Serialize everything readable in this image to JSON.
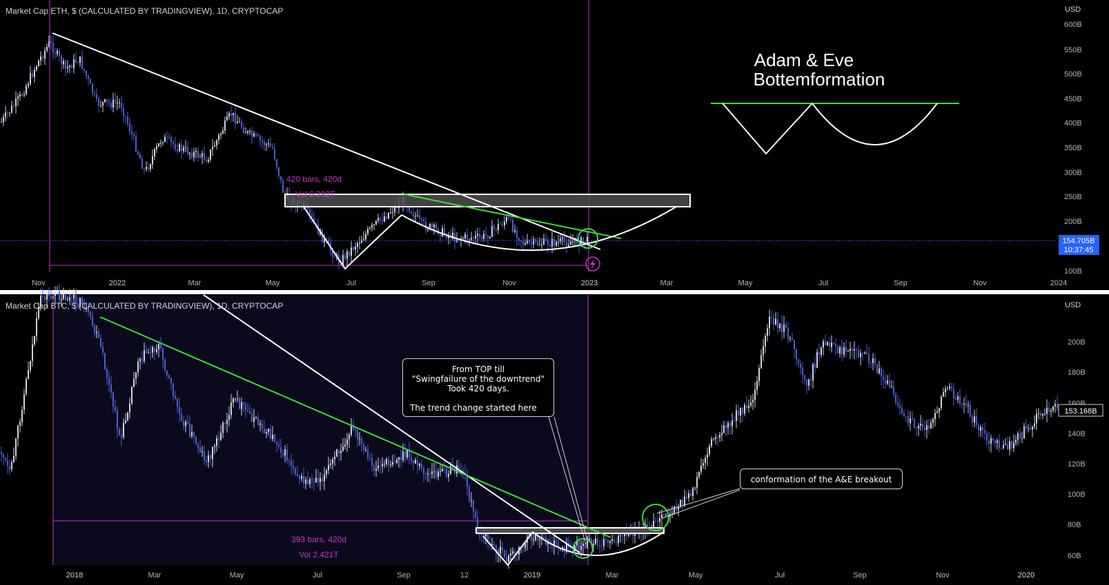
{
  "colors": {
    "background": "#000000",
    "candle": "#4a5fd0",
    "candle_light": "#d1d4dc",
    "trend_white": "#ffffff",
    "trend_green": "#3ddc3d",
    "measure": "#cc33cc",
    "price_tag": "#2962ff",
    "axis_text": "#b2b5be"
  },
  "eth_panel": {
    "title": "Market Cap ETH, $ (CALCULATED BY TRADINGVIEW), 1D, CRYPTOCAP",
    "currency": "USD",
    "y_ticks": [
      "600B",
      "550B",
      "500B",
      "450B",
      "400B",
      "350B",
      "300B",
      "250B",
      "200B",
      "100B"
    ],
    "x_ticks": [
      "Nov",
      "2022",
      "Mar",
      "May",
      "Jul",
      "Sep",
      "Nov",
      "2023",
      "Mar",
      "May",
      "Jul",
      "Sep",
      "Nov",
      "2024"
    ],
    "price_tag": "154.705B",
    "countdown": "10:37:45",
    "measure_bars": "420 bars, 420d",
    "measure_vol": "Vol 6.392T",
    "pattern_title_1": "Adam & Eve",
    "pattern_title_2": "Bottemformation",
    "lightning_icon": "lightning-icon"
  },
  "btc_panel": {
    "title": "Market Cap BTC, $ (CALCULATED BY TRADINGVIEW), 1D, CRYPTOCAP",
    "currency": "USD",
    "y_ticks": [
      "200B",
      "180B",
      "160B",
      "140B",
      "120B",
      "100B",
      "80B",
      "60B"
    ],
    "x_ticks": [
      "2018",
      "Mar",
      "May",
      "Jul",
      "Sep",
      "12",
      "2019",
      "Mar",
      "May",
      "Jul",
      "Sep",
      "Nov",
      "2020"
    ],
    "price_tag": "153.168B",
    "measure_bars": "393 bars, 420d",
    "measure_vol": "Vol 2.421T",
    "callout_lines": [
      "From TOP till",
      "\"Swingfailure of the downtrend\"",
      "Took 420 days.",
      "",
      "The trend change started here"
    ],
    "breakout_label": "conformation of the A&E breakout"
  },
  "chart_data": [
    {
      "type": "candlestick",
      "title": "Market Cap ETH, $ (CALCULATED BY TRADINGVIEW), 1D, CRYPTOCAP",
      "ylabel": "USD",
      "ylim": [
        90,
        620
      ],
      "x": [
        "2021-11",
        "2021-12",
        "2022-01",
        "2022-02",
        "2022-03",
        "2022-04",
        "2022-05",
        "2022-06",
        "2022-07",
        "2022-08",
        "2022-09",
        "2022-10",
        "2022-11",
        "2022-12",
        "2023-01"
      ],
      "close_approx": [
        560,
        470,
        320,
        330,
        400,
        360,
        235,
        125,
        195,
        225,
        165,
        160,
        150,
        145,
        155
      ],
      "last_value": "154.705B"
    },
    {
      "type": "candlestick",
      "title": "Market Cap BTC, $ (CALCULATED BY TRADINGVIEW), 1D, CRYPTOCAP",
      "ylabel": "USD",
      "ylim": [
        50,
        215
      ],
      "x": [
        "2017-12",
        "2018-01",
        "2018-03",
        "2018-05",
        "2018-07",
        "2018-09",
        "2018-11",
        "2018-12",
        "2019-01",
        "2019-03",
        "2019-04",
        "2019-05",
        "2019-06",
        "2019-07",
        "2019-09",
        "2019-11",
        "2020-01"
      ],
      "close_approx": [
        220,
        200,
        150,
        140,
        110,
        115,
        100,
        60,
        60,
        65,
        90,
        140,
        180,
        200,
        160,
        130,
        160
      ],
      "last_value": "153.168B"
    }
  ]
}
